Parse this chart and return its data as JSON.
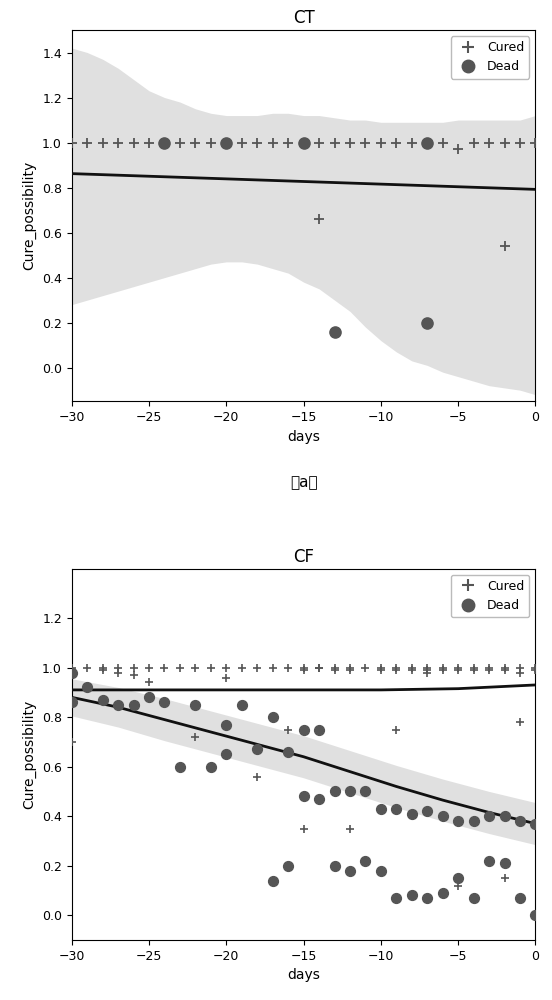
{
  "fig_width": 5.52,
  "fig_height": 10.0,
  "dpi": 100,
  "background_color": "#ffffff",
  "point_color": "#555555",
  "line_color": "#111111",
  "band_color": "#bbbbbb",
  "band_alpha": 0.45,
  "ct": {
    "title": "CT",
    "xlabel": "days",
    "ylabel": "Cure_possibility",
    "xlim": [
      -30,
      0
    ],
    "ylim": [
      -0.15,
      1.5
    ],
    "yticks": [
      0.0,
      0.2,
      0.4,
      0.6,
      0.8,
      1.0,
      1.2,
      1.4
    ],
    "xticks": [
      -30,
      -25,
      -20,
      -15,
      -10,
      -5,
      0
    ],
    "cured_x": [
      -30,
      -29,
      -28,
      -27,
      -26,
      -25,
      -24,
      -23,
      -22,
      -21,
      -20,
      -19,
      -18,
      -17,
      -16,
      -15,
      -14,
      -13,
      -12,
      -11,
      -10,
      -9,
      -8,
      -7,
      -6,
      -5,
      -4,
      -3,
      -2,
      -1,
      0,
      -14,
      -2
    ],
    "cured_y": [
      1.0,
      1.0,
      1.0,
      1.0,
      1.0,
      1.0,
      1.0,
      1.0,
      1.0,
      1.0,
      1.0,
      1.0,
      1.0,
      1.0,
      1.0,
      1.0,
      1.0,
      1.0,
      1.0,
      1.0,
      1.0,
      1.0,
      1.0,
      1.0,
      1.0,
      0.97,
      1.0,
      1.0,
      1.0,
      1.0,
      1.0,
      0.66,
      0.54
    ],
    "dead_x": [
      -24,
      -20,
      -15,
      -7,
      -13,
      -7
    ],
    "dead_y": [
      1.0,
      1.0,
      1.0,
      1.0,
      0.16,
      0.2
    ],
    "line_x": [
      -30,
      -27,
      -24,
      -21,
      -18,
      -15,
      -12,
      -9,
      -6,
      -3,
      0
    ],
    "line_y": [
      0.862,
      0.855,
      0.848,
      0.841,
      0.834,
      0.827,
      0.82,
      0.813,
      0.806,
      0.799,
      0.792
    ],
    "band_x": [
      -30,
      -29,
      -28,
      -27,
      -26,
      -25,
      -24,
      -23,
      -22,
      -21,
      -20,
      -19,
      -18,
      -17,
      -16,
      -15,
      -14,
      -13,
      -12,
      -11,
      -10,
      -9,
      -8,
      -7,
      -6,
      -5,
      -4,
      -3,
      -2,
      -1,
      0
    ],
    "band_upper": [
      1.42,
      1.4,
      1.37,
      1.33,
      1.28,
      1.23,
      1.2,
      1.18,
      1.15,
      1.13,
      1.12,
      1.12,
      1.12,
      1.13,
      1.13,
      1.12,
      1.12,
      1.11,
      1.1,
      1.1,
      1.09,
      1.09,
      1.09,
      1.09,
      1.09,
      1.1,
      1.1,
      1.1,
      1.1,
      1.1,
      1.12
    ],
    "band_lower": [
      0.28,
      0.3,
      0.32,
      0.34,
      0.36,
      0.38,
      0.4,
      0.42,
      0.44,
      0.46,
      0.47,
      0.47,
      0.46,
      0.44,
      0.42,
      0.38,
      0.35,
      0.3,
      0.25,
      0.18,
      0.12,
      0.07,
      0.03,
      0.01,
      -0.02,
      -0.04,
      -0.06,
      -0.08,
      -0.09,
      -0.1,
      -0.12
    ]
  },
  "cf": {
    "title": "CF",
    "xlabel": "days",
    "ylabel": "Cure_possibility",
    "xlim": [
      -30,
      0
    ],
    "ylim": [
      -0.1,
      1.4
    ],
    "yticks": [
      0.0,
      0.2,
      0.4,
      0.6,
      0.8,
      1.0,
      1.2
    ],
    "xticks": [
      -30,
      -25,
      -20,
      -15,
      -10,
      -5,
      0
    ],
    "cured_x": [
      -30,
      -30,
      -29,
      -28,
      -28,
      -27,
      -27,
      -26,
      -26,
      -25,
      -25,
      -24,
      -23,
      -22,
      -21,
      -20,
      -20,
      -19,
      -18,
      -17,
      -16,
      -15,
      -15,
      -14,
      -14,
      -13,
      -13,
      -12,
      -12,
      -11,
      -10,
      -10,
      -9,
      -9,
      -8,
      -8,
      -7,
      -7,
      -7,
      -6,
      -6,
      -5,
      -5,
      -4,
      -4,
      -3,
      -3,
      -2,
      -2,
      -1,
      -1,
      0,
      0,
      -30,
      -22,
      -18,
      -16,
      -15,
      -12,
      -9,
      -5,
      -2,
      -1
    ],
    "cured_y": [
      1.0,
      0.97,
      1.0,
      1.0,
      0.99,
      1.0,
      0.98,
      1.0,
      0.97,
      1.0,
      0.94,
      1.0,
      1.0,
      1.0,
      1.0,
      1.0,
      0.96,
      1.0,
      1.0,
      1.0,
      1.0,
      1.0,
      0.99,
      1.0,
      1.0,
      1.0,
      0.99,
      1.0,
      0.99,
      1.0,
      1.0,
      0.99,
      1.0,
      0.99,
      1.0,
      0.99,
      1.0,
      0.99,
      0.98,
      1.0,
      0.99,
      1.0,
      0.99,
      1.0,
      0.99,
      1.0,
      0.99,
      1.0,
      0.99,
      1.0,
      0.98,
      1.0,
      0.99,
      0.7,
      0.72,
      0.56,
      0.75,
      0.35,
      0.35,
      0.75,
      0.12,
      0.15,
      0.78
    ],
    "dead_x": [
      -30,
      -30,
      -29,
      -28,
      -27,
      -26,
      -25,
      -24,
      -23,
      -22,
      -21,
      -20,
      -20,
      -19,
      -18,
      -17,
      -17,
      -16,
      -16,
      -15,
      -15,
      -14,
      -14,
      -13,
      -13,
      -12,
      -12,
      -11,
      -11,
      -10,
      -10,
      -9,
      -9,
      -8,
      -8,
      -7,
      -7,
      -6,
      -6,
      -5,
      -5,
      -4,
      -4,
      -3,
      -3,
      -2,
      -2,
      -1,
      -1,
      0,
      0
    ],
    "dead_y": [
      0.98,
      0.86,
      0.92,
      0.87,
      0.85,
      0.85,
      0.88,
      0.86,
      0.6,
      0.85,
      0.6,
      0.77,
      0.65,
      0.85,
      0.67,
      0.8,
      0.14,
      0.66,
      0.2,
      0.75,
      0.48,
      0.75,
      0.47,
      0.5,
      0.2,
      0.5,
      0.18,
      0.5,
      0.22,
      0.43,
      0.18,
      0.43,
      0.07,
      0.41,
      0.08,
      0.42,
      0.07,
      0.4,
      0.09,
      0.38,
      0.15,
      0.38,
      0.07,
      0.4,
      0.22,
      0.4,
      0.21,
      0.38,
      0.07,
      0.37,
      0.0
    ],
    "line1_x": [
      -30,
      -25,
      -20,
      -15,
      -10,
      -5,
      0
    ],
    "line1_y": [
      0.91,
      0.91,
      0.91,
      0.91,
      0.91,
      0.915,
      0.93
    ],
    "line2_x": [
      -30,
      -27,
      -24,
      -21,
      -18,
      -15,
      -12,
      -9,
      -6,
      -3,
      0
    ],
    "line2_y": [
      0.88,
      0.84,
      0.79,
      0.74,
      0.69,
      0.64,
      0.58,
      0.52,
      0.465,
      0.415,
      0.37
    ],
    "band_x": [
      -30,
      -27,
      -24,
      -21,
      -18,
      -15,
      -12,
      -9,
      -6,
      -3,
      0
    ],
    "band_upper": [
      0.955,
      0.92,
      0.875,
      0.825,
      0.775,
      0.725,
      0.665,
      0.605,
      0.55,
      0.5,
      0.455
    ],
    "band_lower": [
      0.805,
      0.76,
      0.705,
      0.655,
      0.605,
      0.555,
      0.495,
      0.435,
      0.38,
      0.33,
      0.285
    ]
  }
}
